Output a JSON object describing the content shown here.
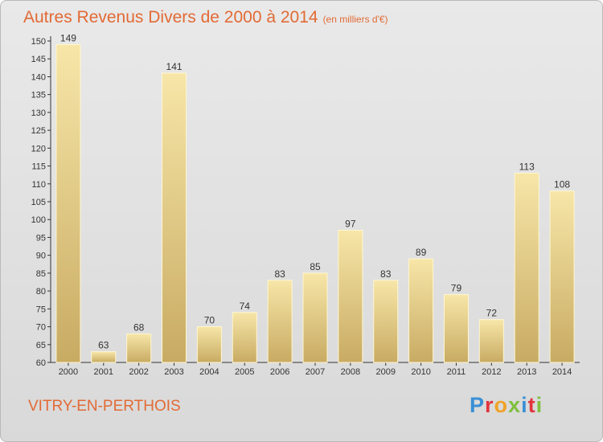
{
  "header": {
    "title": "Autres Revenus Divers de 2000 à 2014",
    "subtitle": "(en milliers d'€)"
  },
  "footer": {
    "commune": "VITRY-EN-PERTHOIS",
    "logo": "Proxiti",
    "logo_colors": [
      "#3a8fd6",
      "#e2343e",
      "#f0a329",
      "#7fbf3f",
      "#3a8fd6",
      "#e2343e",
      "#7fbf3f"
    ]
  },
  "colors": {
    "title": "#e26a35",
    "bar_light": "#f7e6a8",
    "bar_dark": "#c8ab63",
    "background": "#e2e2e2"
  },
  "chart_data": {
    "type": "bar",
    "title": "Autres Revenus Divers de 2000 à 2014",
    "ylabel": "",
    "xlabel": "",
    "ylim": [
      60,
      150
    ],
    "yticks": [
      60,
      65,
      70,
      75,
      80,
      85,
      90,
      95,
      100,
      105,
      110,
      115,
      120,
      125,
      130,
      135,
      140,
      145,
      150
    ],
    "categories": [
      "2000",
      "2001",
      "2002",
      "2003",
      "2004",
      "2005",
      "2006",
      "2007",
      "2008",
      "2009",
      "2010",
      "2011",
      "2012",
      "2013",
      "2014"
    ],
    "values": [
      149,
      63,
      68,
      141,
      70,
      74,
      83,
      85,
      97,
      83,
      89,
      79,
      72,
      113,
      108
    ],
    "grid": false,
    "legend": "none"
  }
}
